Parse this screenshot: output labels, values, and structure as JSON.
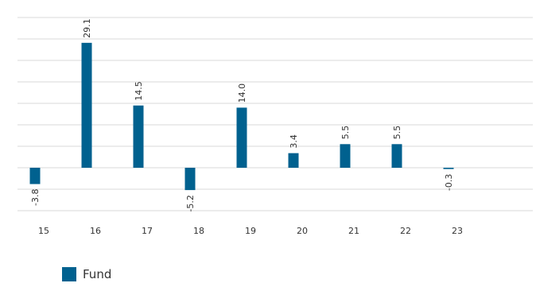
{
  "chart_data": {
    "type": "bar",
    "categories": [
      "15",
      "16",
      "17",
      "18",
      "19",
      "20",
      "21",
      "22",
      "23"
    ],
    "series": [
      {
        "name": "Fund",
        "values": [
          -3.8,
          29.1,
          14.5,
          -5.2,
          14.0,
          3.4,
          5.5,
          5.5,
          -0.3
        ],
        "labels": [
          "-3.8",
          "29.1",
          "14.5",
          "-5.2",
          "14.0",
          "3.4",
          "5.5",
          "5.5",
          "-0.3"
        ]
      }
    ],
    "ylim": [
      -10,
      35
    ],
    "grid": true,
    "legend_position": "bottom-left",
    "colors": {
      "bar": "#00618f",
      "grid": "#d9d9d9",
      "text": "#333333"
    }
  }
}
